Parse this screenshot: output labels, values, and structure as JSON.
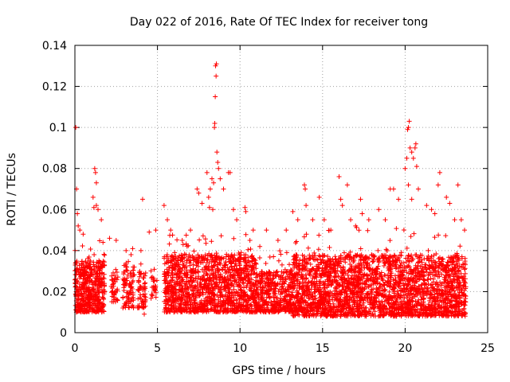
{
  "chart_data": {
    "type": "scatter",
    "title": "Day 022 of 2016, Rate Of TEC Index for receiver tong",
    "xlabel": "GPS time / hours",
    "ylabel": "ROTI / TECUs",
    "xlim": [
      0,
      25
    ],
    "ylim": [
      0,
      0.14
    ],
    "xticks": [
      0,
      5,
      10,
      15,
      20,
      25
    ],
    "xtick_labels": [
      "0",
      "5",
      "10",
      "15",
      "20",
      "25"
    ],
    "yticks": [
      0,
      0.02,
      0.04,
      0.06,
      0.08,
      0.1,
      0.12,
      0.14
    ],
    "ytick_labels": [
      "0",
      "0.02",
      "0.04",
      "0.06",
      "0.08",
      "0.1",
      "0.12",
      "0.14"
    ],
    "grid": true,
    "marker": "+",
    "series": [
      {
        "name": "ROTI",
        "color": "#ff0000",
        "bands": [
          {
            "x0": 0.0,
            "x1": 1.8,
            "ymin": 0.01,
            "ymax": 0.035,
            "n": 500
          },
          {
            "x0": 2.2,
            "x1": 2.6,
            "ymin": 0.015,
            "ymax": 0.03,
            "n": 40
          },
          {
            "x0": 2.9,
            "x1": 3.6,
            "ymin": 0.012,
            "ymax": 0.035,
            "n": 90
          },
          {
            "x0": 3.8,
            "x1": 4.3,
            "ymin": 0.012,
            "ymax": 0.03,
            "n": 60
          },
          {
            "x0": 4.6,
            "x1": 5.0,
            "ymin": 0.015,
            "ymax": 0.028,
            "n": 25
          },
          {
            "x0": 5.4,
            "x1": 11.0,
            "ymin": 0.01,
            "ymax": 0.038,
            "n": 1300
          },
          {
            "x0": 11.0,
            "x1": 13.2,
            "ymin": 0.01,
            "ymax": 0.03,
            "n": 420
          },
          {
            "x0": 13.2,
            "x1": 17.2,
            "ymin": 0.008,
            "ymax": 0.038,
            "n": 1000
          },
          {
            "x0": 17.2,
            "x1": 23.7,
            "ymin": 0.008,
            "ymax": 0.038,
            "n": 1500
          }
        ],
        "peaks": [
          {
            "x": 0.05,
            "y": 0.1
          },
          {
            "x": 0.1,
            "y": 0.07
          },
          {
            "x": 0.15,
            "y": 0.058
          },
          {
            "x": 0.2,
            "y": 0.052
          },
          {
            "x": 0.3,
            "y": 0.05
          },
          {
            "x": 0.5,
            "y": 0.048
          },
          {
            "x": 1.2,
            "y": 0.08
          },
          {
            "x": 1.25,
            "y": 0.078
          },
          {
            "x": 1.3,
            "y": 0.073
          },
          {
            "x": 1.1,
            "y": 0.066
          },
          {
            "x": 1.15,
            "y": 0.061
          },
          {
            "x": 1.3,
            "y": 0.062
          },
          {
            "x": 1.4,
            "y": 0.06
          },
          {
            "x": 1.6,
            "y": 0.055
          },
          {
            "x": 1.7,
            "y": 0.044
          },
          {
            "x": 2.1,
            "y": 0.046
          },
          {
            "x": 2.5,
            "y": 0.045
          },
          {
            "x": 3.1,
            "y": 0.04
          },
          {
            "x": 3.4,
            "y": 0.038
          },
          {
            "x": 4.1,
            "y": 0.065
          },
          {
            "x": 4.0,
            "y": 0.04
          },
          {
            "x": 4.5,
            "y": 0.049
          },
          {
            "x": 4.9,
            "y": 0.05
          },
          {
            "x": 4.2,
            "y": 0.009
          },
          {
            "x": 5.4,
            "y": 0.062
          },
          {
            "x": 5.6,
            "y": 0.055
          },
          {
            "x": 5.8,
            "y": 0.05
          },
          {
            "x": 6.5,
            "y": 0.045
          },
          {
            "x": 7.0,
            "y": 0.05
          },
          {
            "x": 7.4,
            "y": 0.07
          },
          {
            "x": 7.5,
            "y": 0.068
          },
          {
            "x": 7.7,
            "y": 0.063
          },
          {
            "x": 8.0,
            "y": 0.078
          },
          {
            "x": 8.1,
            "y": 0.066
          },
          {
            "x": 8.15,
            "y": 0.061
          },
          {
            "x": 8.2,
            "y": 0.07
          },
          {
            "x": 8.3,
            "y": 0.075
          },
          {
            "x": 8.35,
            "y": 0.06
          },
          {
            "x": 8.4,
            "y": 0.073
          },
          {
            "x": 8.45,
            "y": 0.1
          },
          {
            "x": 8.47,
            "y": 0.102
          },
          {
            "x": 8.5,
            "y": 0.115
          },
          {
            "x": 8.52,
            "y": 0.13
          },
          {
            "x": 8.55,
            "y": 0.125
          },
          {
            "x": 8.57,
            "y": 0.131
          },
          {
            "x": 8.6,
            "y": 0.088
          },
          {
            "x": 8.65,
            "y": 0.083
          },
          {
            "x": 8.7,
            "y": 0.08
          },
          {
            "x": 8.8,
            "y": 0.075
          },
          {
            "x": 9.0,
            "y": 0.07
          },
          {
            "x": 9.3,
            "y": 0.078
          },
          {
            "x": 9.4,
            "y": 0.078
          },
          {
            "x": 9.6,
            "y": 0.06
          },
          {
            "x": 9.8,
            "y": 0.055
          },
          {
            "x": 10.3,
            "y": 0.061
          },
          {
            "x": 10.35,
            "y": 0.059
          },
          {
            "x": 10.6,
            "y": 0.045
          },
          {
            "x": 10.8,
            "y": 0.05
          },
          {
            "x": 11.2,
            "y": 0.042
          },
          {
            "x": 11.6,
            "y": 0.05
          },
          {
            "x": 12.3,
            "y": 0.045
          },
          {
            "x": 12.8,
            "y": 0.05
          },
          {
            "x": 13.2,
            "y": 0.059
          },
          {
            "x": 13.5,
            "y": 0.055
          },
          {
            "x": 13.9,
            "y": 0.072
          },
          {
            "x": 13.95,
            "y": 0.07
          },
          {
            "x": 14.0,
            "y": 0.062
          },
          {
            "x": 14.4,
            "y": 0.055
          },
          {
            "x": 14.8,
            "y": 0.066
          },
          {
            "x": 15.1,
            "y": 0.055
          },
          {
            "x": 15.5,
            "y": 0.05
          },
          {
            "x": 16.0,
            "y": 0.076
          },
          {
            "x": 16.1,
            "y": 0.065
          },
          {
            "x": 16.2,
            "y": 0.062
          },
          {
            "x": 16.5,
            "y": 0.072
          },
          {
            "x": 16.7,
            "y": 0.055
          },
          {
            "x": 17.0,
            "y": 0.052
          },
          {
            "x": 17.3,
            "y": 0.065
          },
          {
            "x": 17.4,
            "y": 0.058
          },
          {
            "x": 17.8,
            "y": 0.055
          },
          {
            "x": 18.4,
            "y": 0.06
          },
          {
            "x": 18.8,
            "y": 0.055
          },
          {
            "x": 19.1,
            "y": 0.07
          },
          {
            "x": 19.3,
            "y": 0.07
          },
          {
            "x": 19.6,
            "y": 0.065
          },
          {
            "x": 20.0,
            "y": 0.08
          },
          {
            "x": 20.1,
            "y": 0.085
          },
          {
            "x": 20.15,
            "y": 0.099
          },
          {
            "x": 20.2,
            "y": 0.1
          },
          {
            "x": 20.25,
            "y": 0.103
          },
          {
            "x": 20.3,
            "y": 0.09
          },
          {
            "x": 20.4,
            "y": 0.088
          },
          {
            "x": 20.5,
            "y": 0.085
          },
          {
            "x": 20.6,
            "y": 0.09
          },
          {
            "x": 20.65,
            "y": 0.092
          },
          {
            "x": 20.7,
            "y": 0.081
          },
          {
            "x": 20.2,
            "y": 0.072
          },
          {
            "x": 20.4,
            "y": 0.065
          },
          {
            "x": 20.8,
            "y": 0.07
          },
          {
            "x": 21.3,
            "y": 0.062
          },
          {
            "x": 21.6,
            "y": 0.06
          },
          {
            "x": 21.8,
            "y": 0.058
          },
          {
            "x": 22.0,
            "y": 0.072
          },
          {
            "x": 22.1,
            "y": 0.078
          },
          {
            "x": 22.5,
            "y": 0.066
          },
          {
            "x": 22.7,
            "y": 0.063
          },
          {
            "x": 23.0,
            "y": 0.055
          },
          {
            "x": 23.2,
            "y": 0.072
          },
          {
            "x": 23.4,
            "y": 0.055
          },
          {
            "x": 23.6,
            "y": 0.05
          }
        ]
      }
    ]
  }
}
